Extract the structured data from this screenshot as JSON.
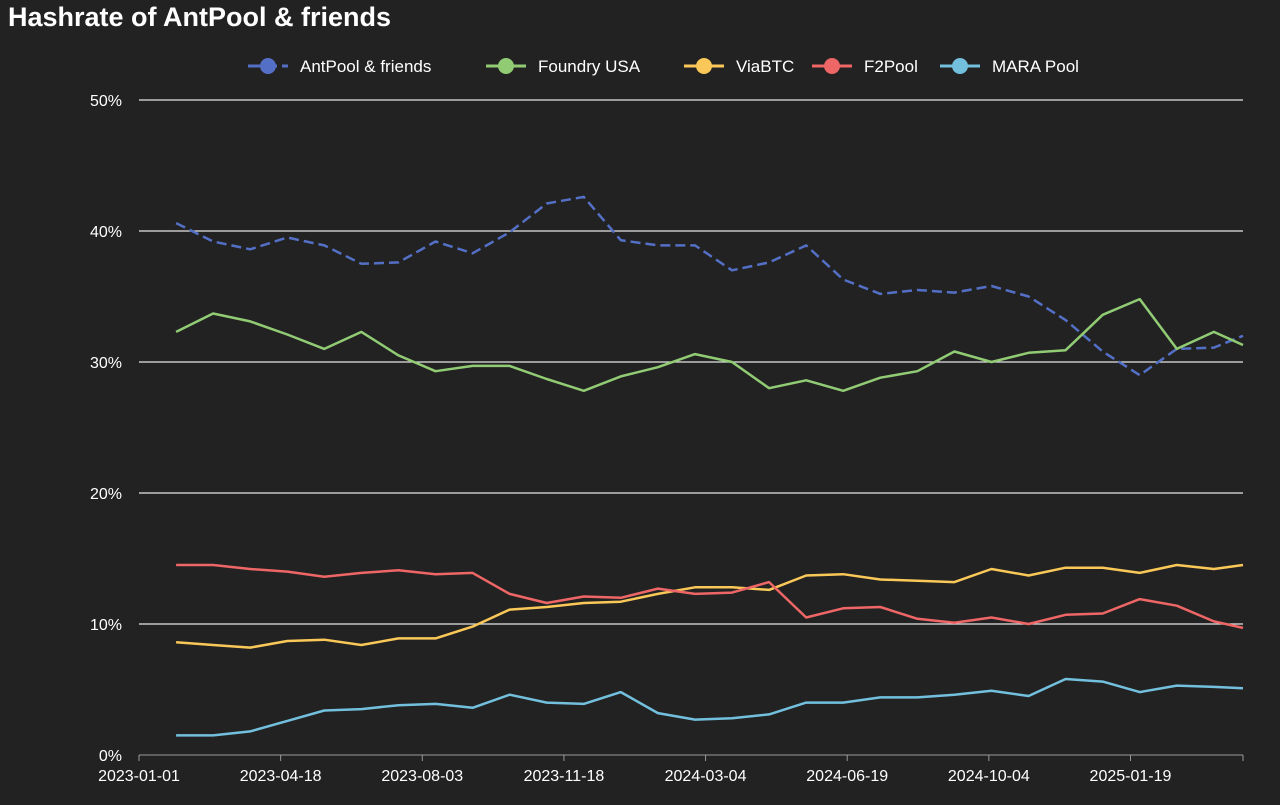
{
  "chart_data": {
    "type": "line",
    "title": "Hashrate of AntPool & friends",
    "xlabel": "",
    "ylabel": "",
    "ylim": [
      0,
      50
    ],
    "y_ticks": [
      "0%",
      "10%",
      "20%",
      "30%",
      "40%",
      "50%"
    ],
    "x_range": [
      "2023-01-01",
      "2025-04-14"
    ],
    "x_ticks": [
      "2023-01-01",
      "2023-04-18",
      "2023-08-03",
      "2023-11-18",
      "2024-03-04",
      "2024-06-19",
      "2024-10-04",
      "2025-01-19"
    ],
    "grid": true,
    "legend_position": "top",
    "x": [
      "2023-01-29",
      "2023-02-26",
      "2023-03-26",
      "2023-04-23",
      "2023-05-21",
      "2023-06-18",
      "2023-07-16",
      "2023-08-13",
      "2023-09-10",
      "2023-10-08",
      "2023-11-05",
      "2023-12-03",
      "2023-12-31",
      "2024-01-28",
      "2024-02-25",
      "2024-03-24",
      "2024-04-21",
      "2024-05-19",
      "2024-06-16",
      "2024-07-14",
      "2024-08-11",
      "2024-09-08",
      "2024-10-06",
      "2024-11-03",
      "2024-12-01",
      "2024-12-29",
      "2025-01-26",
      "2025-02-23",
      "2025-03-23",
      "2025-04-14"
    ],
    "series": [
      {
        "name": "AntPool & friends",
        "color": "#5470c6",
        "dashed": true,
        "values": [
          40.6,
          39.2,
          38.6,
          39.5,
          38.9,
          37.5,
          37.6,
          39.2,
          38.3,
          39.9,
          42.1,
          42.6,
          39.3,
          38.9,
          38.9,
          37.0,
          37.6,
          38.9,
          36.3,
          35.2,
          35.5,
          35.3,
          35.8,
          35.0,
          33.2,
          30.8,
          29.0,
          31.0,
          31.1,
          32.0
        ]
      },
      {
        "name": "Foundry USA",
        "color": "#91cc75",
        "dashed": false,
        "values": [
          32.3,
          33.7,
          33.1,
          32.1,
          31.0,
          32.3,
          30.5,
          29.3,
          29.7,
          29.7,
          28.7,
          27.8,
          28.9,
          29.6,
          30.6,
          30.0,
          28.0,
          28.6,
          27.8,
          28.8,
          29.3,
          30.8,
          30.0,
          30.7,
          30.9,
          33.6,
          34.8,
          31.0,
          32.3,
          31.3
        ]
      },
      {
        "name": "ViaBTC",
        "color": "#fac858",
        "dashed": false,
        "values": [
          8.6,
          8.4,
          8.2,
          8.7,
          8.8,
          8.4,
          8.9,
          8.9,
          9.8,
          11.1,
          11.3,
          11.6,
          11.7,
          12.3,
          12.8,
          12.8,
          12.6,
          13.7,
          13.8,
          13.4,
          13.3,
          13.2,
          14.2,
          13.7,
          14.3,
          14.3,
          13.9,
          14.5,
          14.2,
          14.5
        ]
      },
      {
        "name": "F2Pool",
        "color": "#ee6666",
        "dashed": false,
        "values": [
          14.5,
          14.5,
          14.2,
          14.0,
          13.6,
          13.9,
          14.1,
          13.8,
          13.9,
          12.3,
          11.6,
          12.1,
          12.0,
          12.7,
          12.3,
          12.4,
          13.2,
          10.5,
          11.2,
          11.3,
          10.4,
          10.1,
          10.5,
          10.0,
          10.7,
          10.8,
          11.9,
          11.4,
          10.2,
          9.7
        ]
      },
      {
        "name": "MARA Pool",
        "color": "#73c0de",
        "dashed": false,
        "values": [
          1.5,
          1.5,
          1.8,
          2.6,
          3.4,
          3.5,
          3.8,
          3.9,
          3.6,
          4.6,
          4.0,
          3.9,
          4.8,
          3.2,
          2.7,
          2.8,
          3.1,
          4.0,
          4.0,
          4.4,
          4.4,
          4.6,
          4.9,
          4.5,
          5.8,
          5.6,
          4.8,
          5.3,
          5.2,
          5.1
        ]
      }
    ]
  }
}
